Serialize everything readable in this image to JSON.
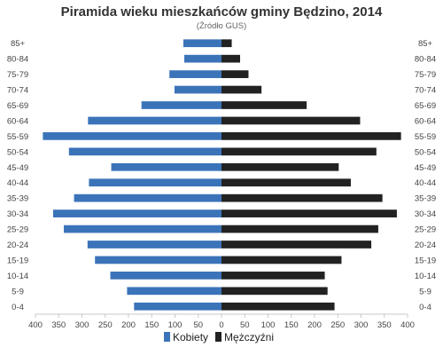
{
  "chart_data": {
    "type": "bar",
    "orientation": "horizontal",
    "layout": "population-pyramid",
    "title": "Piramida wieku mieszkańców gminy Będzino, 2014",
    "subtitle": "(Źródło  GUS)",
    "categories": [
      "85+",
      "80-84",
      "75-79",
      "70-74",
      "65-69",
      "60-64",
      "55-59",
      "50-54",
      "45-49",
      "40-44",
      "35-39",
      "30-34",
      "25-29",
      "20-24",
      "15-19",
      "10-14",
      "5-9",
      "0-4"
    ],
    "series": [
      {
        "name": "Kobiety",
        "side": "left",
        "color": "#3b73b9",
        "values": [
          82,
          80,
          112,
          101,
          172,
          287,
          384,
          328,
          237,
          285,
          317,
          362,
          339,
          288,
          272,
          239,
          203,
          188
        ]
      },
      {
        "name": "Mężczyźni",
        "side": "right",
        "color": "#222222",
        "values": [
          22,
          40,
          58,
          86,
          183,
          298,
          386,
          333,
          252,
          278,
          346,
          377,
          337,
          322,
          258,
          222,
          228,
          243
        ]
      }
    ],
    "xlim": [
      -400,
      400
    ],
    "x_ticks": [
      -400,
      -350,
      -300,
      -250,
      -200,
      -150,
      -100,
      -50,
      0,
      50,
      100,
      150,
      200,
      250,
      300,
      350,
      400
    ],
    "x_tick_labels": [
      "400",
      "350",
      "300",
      "250",
      "200",
      "150",
      "100",
      "50",
      "0",
      "50",
      "100",
      "150",
      "200",
      "250",
      "300",
      "350",
      "400"
    ],
    "grid": false,
    "legend_position": "bottom-center"
  }
}
